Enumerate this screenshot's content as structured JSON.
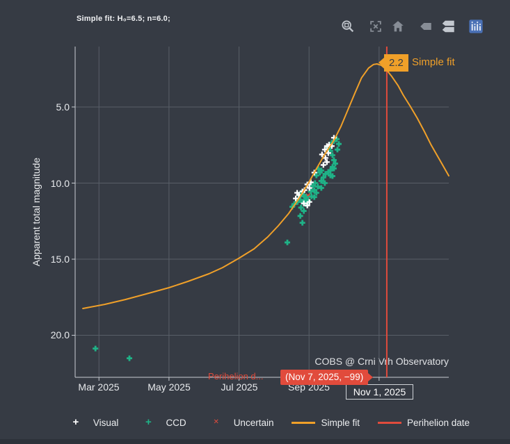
{
  "header": {
    "fit_params": "Simple fit: H₀=6.5; n=6.0;"
  },
  "toolbar": {
    "icons": [
      "box-zoom",
      "autoscale",
      "reset-home",
      "hover-closest",
      "hover-compare",
      "plotly-logo"
    ]
  },
  "y_axis": {
    "title": "Apparent total magnitude",
    "ticks": [
      "5.0",
      "10.0",
      "15.0",
      "20.0"
    ]
  },
  "x_axis": {
    "labels": [
      "Mar 2025",
      "May 2025",
      "Jul 2025",
      "Sep 2025"
    ]
  },
  "annotations": {
    "peak_value": "2.2",
    "peak_label": "Simple fit",
    "perihelion_label": "Perihelion d...",
    "tooltip": "(Nov 7, 2025, −99)",
    "x_hover_label": "Nov 1, 2025",
    "watermark": "COBS @ Crni Vrh Observatory"
  },
  "legend": {
    "items": [
      {
        "id": "visual",
        "label": "Visual",
        "symbol": "+",
        "color": "#ffffff"
      },
      {
        "id": "ccd",
        "label": "CCD",
        "symbol": "+",
        "color": "#1fb287"
      },
      {
        "id": "uncertain",
        "label": "Uncertain",
        "symbol": "✕",
        "color": "#e14b3c"
      },
      {
        "id": "simple-fit",
        "label": "Simple fit",
        "symbol": "line",
        "color": "#f0a029"
      },
      {
        "id": "perihelion-date",
        "label": "Perihelion date",
        "symbol": "line",
        "color": "#e14b3c"
      }
    ]
  },
  "colors": {
    "background": "#363b44",
    "grid": "#595f68",
    "axis": "#c9cdd3",
    "fit_line": "#f0a029",
    "visual": "#ffffff",
    "ccd": "#1fb287",
    "uncertain": "#e14b3c",
    "perihelion": "#e14b3c"
  },
  "chart_data": {
    "type": "scatter",
    "x_unit": "months since 2025-01-01 (2.0 = Mar 1, 2025)",
    "y_unit": "apparent total magnitude (inverted axis, brighter up)",
    "x_range": [
      1.32,
      11.99
    ],
    "y_range": [
      1.03,
      22.76
    ],
    "x_tick_values": [
      2,
      4,
      6,
      8,
      10
    ],
    "y_tick_values": [
      5,
      10,
      15,
      20
    ],
    "perihelion_x": 10.22,
    "series": {
      "visual": [
        [
          8.37,
          8.12
        ],
        [
          8.45,
          7.8
        ],
        [
          8.51,
          7.57
        ],
        [
          8.57,
          7.48
        ],
        [
          8.65,
          7.57
        ],
        [
          8.55,
          8.03
        ],
        [
          8.47,
          8.35
        ],
        [
          8.51,
          8.62
        ],
        [
          8.41,
          8.81
        ],
        [
          8.15,
          9.31
        ],
        [
          8.05,
          9.95
        ],
        [
          7.95,
          10.09
        ],
        [
          8.01,
          10.32
        ],
        [
          7.87,
          10.46
        ],
        [
          7.81,
          10.55
        ],
        [
          7.66,
          10.64
        ],
        [
          7.71,
          10.78
        ],
        [
          7.62,
          11.01
        ],
        [
          7.85,
          11.33
        ],
        [
          8.01,
          11.24
        ],
        [
          7.95,
          11.47
        ],
        [
          8.71,
          7.02
        ]
      ],
      "ccd": [
        [
          8.55,
          7.66
        ],
        [
          8.65,
          7.34
        ],
        [
          8.71,
          7.25
        ],
        [
          8.61,
          7.89
        ],
        [
          8.67,
          8.17
        ],
        [
          8.71,
          8.49
        ],
        [
          8.75,
          8.72
        ],
        [
          8.67,
          8.94
        ],
        [
          8.61,
          9.17
        ],
        [
          8.71,
          9.04
        ],
        [
          8.55,
          9.27
        ],
        [
          8.47,
          9.4
        ],
        [
          8.61,
          9.5
        ],
        [
          8.67,
          9.54
        ],
        [
          8.41,
          9.63
        ],
        [
          8.35,
          9.17
        ],
        [
          8.31,
          9.31
        ],
        [
          8.27,
          9.08
        ],
        [
          8.21,
          9.5
        ],
        [
          8.35,
          9.86
        ],
        [
          8.45,
          10.0
        ],
        [
          8.17,
          10.0
        ],
        [
          8.11,
          10.18
        ],
        [
          8.25,
          10.23
        ],
        [
          8.35,
          10.32
        ],
        [
          8.15,
          10.46
        ],
        [
          8.05,
          10.55
        ],
        [
          8.21,
          10.64
        ],
        [
          8.07,
          10.87
        ],
        [
          8.15,
          10.92
        ],
        [
          7.91,
          10.92
        ],
        [
          7.85,
          10.78
        ],
        [
          7.77,
          10.64
        ],
        [
          7.75,
          10.87
        ],
        [
          7.87,
          11.1
        ],
        [
          7.97,
          11.15
        ],
        [
          7.81,
          11.24
        ],
        [
          7.71,
          11.1
        ],
        [
          7.67,
          11.24
        ],
        [
          7.91,
          11.38
        ],
        [
          7.77,
          11.61
        ],
        [
          7.85,
          11.83
        ],
        [
          7.75,
          12.16
        ],
        [
          7.81,
          12.61
        ],
        [
          7.38,
          13.9
        ],
        [
          7.58,
          11.38
        ],
        [
          7.52,
          11.56
        ],
        [
          8.79,
          7.11
        ],
        [
          8.85,
          7.43
        ],
        [
          8.81,
          7.8
        ],
        [
          1.9,
          20.87
        ],
        [
          2.87,
          21.51
        ]
      ],
      "uncertain": [
        [
          7.97,
          10.83
        ]
      ],
      "simple_fit": [
        [
          1.54,
          18.24
        ],
        [
          2.16,
          17.97
        ],
        [
          2.75,
          17.65
        ],
        [
          3.35,
          17.28
        ],
        [
          4.0,
          16.87
        ],
        [
          4.54,
          16.46
        ],
        [
          5.14,
          15.96
        ],
        [
          5.53,
          15.55
        ],
        [
          5.99,
          14.95
        ],
        [
          6.43,
          14.32
        ],
        [
          6.82,
          13.54
        ],
        [
          7.12,
          12.81
        ],
        [
          7.42,
          11.99
        ],
        [
          7.72,
          10.98
        ],
        [
          8.0,
          9.93
        ],
        [
          8.21,
          9.06
        ],
        [
          8.45,
          8.11
        ],
        [
          8.71,
          7.19
        ],
        [
          8.91,
          6.28
        ],
        [
          9.11,
          5.18
        ],
        [
          9.31,
          4.09
        ],
        [
          9.5,
          3.08
        ],
        [
          9.7,
          2.44
        ],
        [
          9.84,
          2.21
        ],
        [
          9.94,
          2.17
        ],
        [
          10.06,
          2.26
        ],
        [
          10.2,
          2.53
        ],
        [
          10.36,
          2.99
        ],
        [
          10.54,
          3.58
        ],
        [
          10.69,
          4.22
        ],
        [
          10.89,
          4.95
        ],
        [
          11.09,
          5.73
        ],
        [
          11.29,
          6.6
        ],
        [
          11.49,
          7.51
        ],
        [
          11.73,
          8.47
        ],
        [
          11.99,
          9.52
        ]
      ]
    }
  }
}
